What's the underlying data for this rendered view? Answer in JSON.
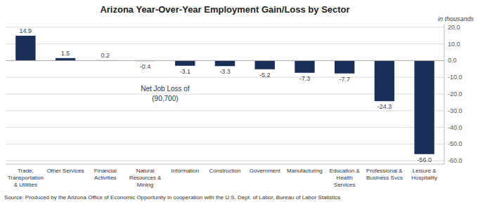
{
  "chart_data": {
    "type": "bar",
    "title": "Arizona Year-Over-Year Employment Gain/Loss by Sector",
    "subtitle": "in thousands",
    "source": "Source: Produced by the Arizona Office of Economic Opportunity in cooperation with the U.S. Dept. of Labor, Bureau of Labor Statistics",
    "annotation": "Net Job Loss of\n(90,700)",
    "categories": [
      "Trade,\nTransportation\n& Utilities",
      "Other Services",
      "Financial\nActivities",
      "Natural\nResources &\nMining",
      "Information",
      "Construction",
      "Government",
      "Manufacturing",
      "Education &\nHealth\nServices",
      "Professional &\nBusiness Svcs",
      "Leisure &\nHospitality"
    ],
    "values": [
      14.9,
      1.5,
      0.2,
      -0.4,
      -3.1,
      -3.3,
      -5.2,
      -7.3,
      -7.7,
      -24.3,
      -56.0
    ],
    "value_labels": [
      "14.9",
      "1.5",
      "0.2",
      "-0.4",
      "-3.1",
      "-3.3",
      "-5.2",
      "-7.3",
      "-7.7",
      "-24.3",
      "-56.0"
    ],
    "data_labels": true,
    "colors": [
      "#1a2e5a",
      "#1a2e5a",
      "#b0b0b8",
      "#b0b0b8",
      "#1a2e5a",
      "#1a2e5a",
      "#1a2e5a",
      "#1a2e5a",
      "#1a2e5a",
      "#1a2e5a",
      "#1a2e5a"
    ],
    "ylim": [
      -62,
      22
    ],
    "yticks": [
      {
        "value": -60,
        "label": "-60.0"
      },
      {
        "value": -50,
        "label": "-50.0"
      },
      {
        "value": -40,
        "label": "-40.0"
      },
      {
        "value": -30,
        "label": "-30.0"
      },
      {
        "value": -20,
        "label": "-20.0"
      },
      {
        "value": -10,
        "label": "-10.0"
      },
      {
        "value": 0,
        "label": "0.0"
      },
      {
        "value": 10,
        "label": "10.0"
      },
      {
        "value": 20,
        "label": "20.0"
      }
    ],
    "grid": true
  }
}
